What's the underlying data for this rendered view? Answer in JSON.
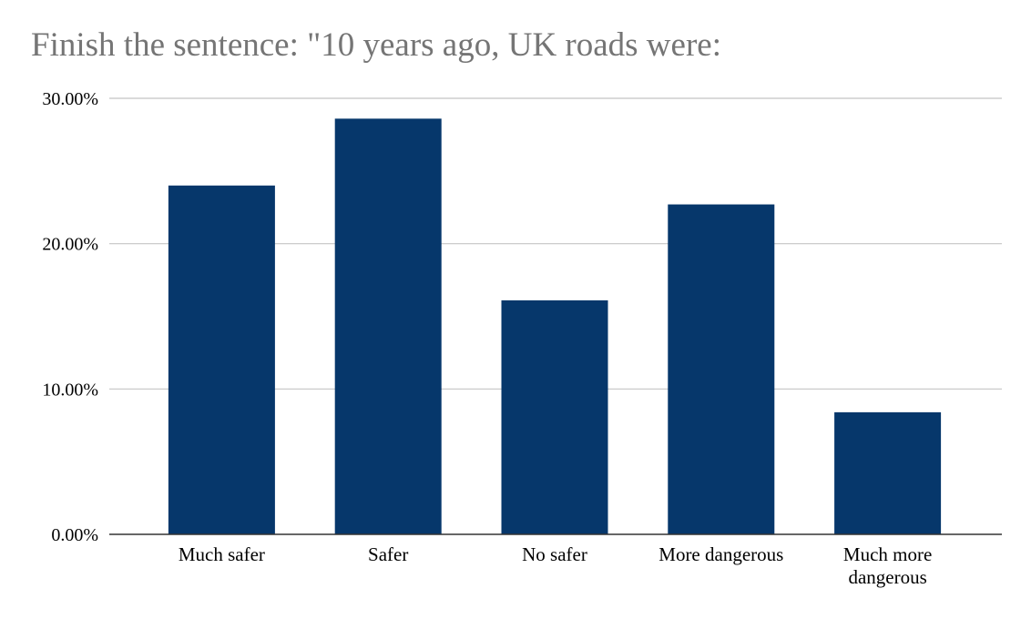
{
  "chart_data": {
    "type": "bar",
    "title": "Finish the sentence: \"10 years ago, UK roads were:",
    "xlabel": "",
    "ylabel": "",
    "categories": [
      "Much safer",
      "Safer",
      "No safer",
      "More dangerous",
      "Much more dangerous"
    ],
    "category_lines": [
      [
        "Much safer"
      ],
      [
        "Safer"
      ],
      [
        "No safer"
      ],
      [
        "More dangerous"
      ],
      [
        "Much more",
        "dangerous"
      ]
    ],
    "values": [
      24.0,
      28.6,
      16.1,
      22.7,
      8.4
    ],
    "ylim": [
      0,
      30
    ],
    "yticks": [
      0,
      10,
      20,
      30
    ],
    "ytick_labels": [
      "0.00%",
      "10.00%",
      "20.00%",
      "30.00%"
    ],
    "grid": true,
    "legend": "none",
    "bar_color": "#06376b"
  }
}
